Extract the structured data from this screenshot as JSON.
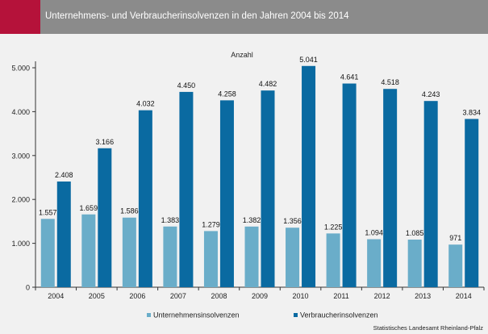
{
  "title": "Unternehmens- und Verbraucherinsolvenzen in den Jahren 2004 bis 2014",
  "source": "Statistisches Landesamt Rheinland-Pfalz",
  "colors": {
    "header": "#8b8b8b",
    "accent": "#b5123a",
    "unternehmen": "#6aadc9",
    "verbraucher": "#0a6aa1"
  },
  "chart_data": {
    "type": "bar",
    "ylabel": "Anzahl",
    "ylim": [
      0,
      5000
    ],
    "yticks": [
      0,
      1000,
      2000,
      3000,
      4000,
      5000
    ],
    "ytick_labels": [
      "0",
      "1.000",
      "2.000",
      "3.000",
      "4.000",
      "5.000"
    ],
    "categories": [
      "2004",
      "2005",
      "2006",
      "2007",
      "2008",
      "2009",
      "2010",
      "2011",
      "2012",
      "2013",
      "2014"
    ],
    "series": [
      {
        "name": "Unternehmensinsolvenzen",
        "values": [
          1557,
          1659,
          1586,
          1383,
          1279,
          1382,
          1356,
          1225,
          1094,
          1085,
          971
        ],
        "labels": [
          "1.557",
          "1.659",
          "1.586",
          "1.383",
          "1.279",
          "1.382",
          "1.356",
          "1.225",
          "1.094",
          "1.085",
          "971"
        ]
      },
      {
        "name": "Verbraucherinsolvenzen",
        "values": [
          2408,
          3166,
          4032,
          4450,
          4258,
          4482,
          5041,
          4641,
          4518,
          4243,
          3834
        ],
        "labels": [
          "2.408",
          "3.166",
          "4.032",
          "4.450",
          "4.258",
          "4.482",
          "5.041",
          "4.641",
          "4.518",
          "4.243",
          "3.834"
        ]
      }
    ],
    "legend_position": "bottom",
    "grid": false
  }
}
